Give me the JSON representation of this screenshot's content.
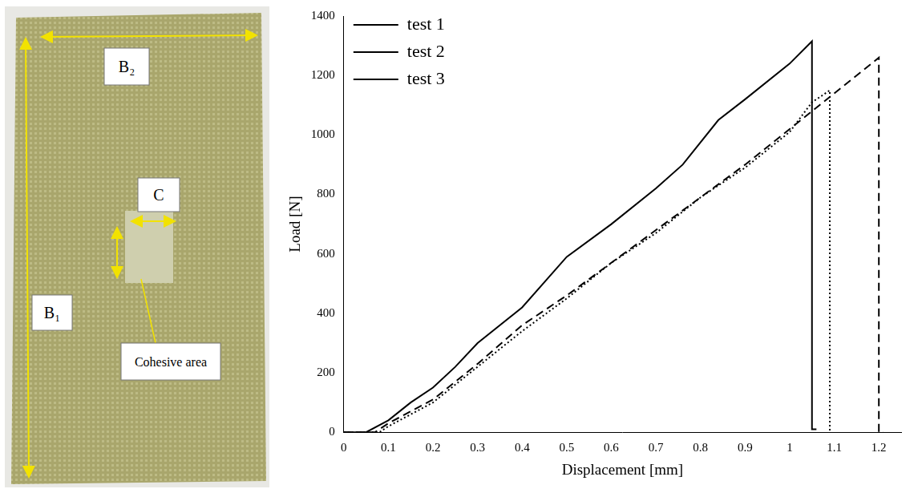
{
  "photo": {
    "labels": {
      "b2": "B₂",
      "c": "C",
      "b1": "B₁",
      "cohesive": "Cohesive area"
    }
  },
  "chart_data": {
    "type": "line",
    "x_label": "Displacement [mm]",
    "y_label": "Load [N]",
    "xlim": [
      0,
      1.25
    ],
    "xticks": [
      0,
      0.1,
      0.2,
      0.3,
      0.4,
      0.5,
      0.6,
      0.7,
      0.8,
      0.9,
      1,
      1.1,
      1.2
    ],
    "ylim": [
      0,
      1400
    ],
    "yticks": [
      0,
      200,
      400,
      600,
      800,
      1000,
      1200,
      1400
    ],
    "grid": false,
    "legend": "upper left",
    "series": [
      {
        "name": "test 1",
        "color": "#000000",
        "line_style": "dashed",
        "x": [
          0,
          0.07,
          0.1,
          0.2,
          0.3,
          0.4,
          0.5,
          0.6,
          0.7,
          0.8,
          0.9,
          1.0,
          1.1,
          1.2,
          1.2,
          1.21
        ],
        "values": [
          0,
          0,
          30,
          110,
          230,
          360,
          460,
          570,
          680,
          790,
          900,
          1020,
          1140,
          1260,
          0,
          0
        ]
      },
      {
        "name": "test 2",
        "color": "#000000",
        "line_style": "solid",
        "x": [
          0,
          0.05,
          0.1,
          0.15,
          0.2,
          0.25,
          0.3,
          0.4,
          0.5,
          0.6,
          0.7,
          0.76,
          0.84,
          0.9,
          1.0,
          1.05,
          1.05,
          1.06
        ],
        "values": [
          0,
          0,
          40,
          100,
          150,
          220,
          300,
          420,
          590,
          700,
          820,
          900,
          1050,
          1120,
          1240,
          1315,
          10,
          10
        ]
      },
      {
        "name": "test 3",
        "color": "#000000",
        "line_style": "dotted",
        "x": [
          0,
          0.08,
          0.1,
          0.2,
          0.3,
          0.4,
          0.5,
          0.6,
          0.7,
          0.8,
          0.9,
          1.0,
          1.05,
          1.09,
          1.09
        ],
        "values": [
          0,
          0,
          20,
          100,
          220,
          340,
          450,
          570,
          670,
          790,
          890,
          1010,
          1110,
          1150,
          0
        ]
      }
    ]
  }
}
